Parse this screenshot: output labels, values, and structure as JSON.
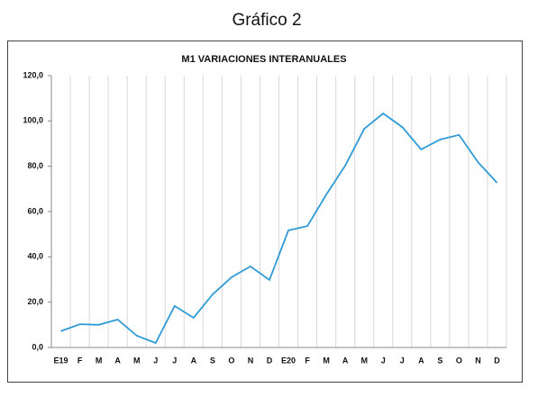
{
  "heading": "Gráfico 2",
  "chart_data": {
    "type": "line",
    "title": "M1 VARIACIONES INTERANUALES",
    "categories": [
      "E19",
      "F",
      "M",
      "A",
      "M",
      "J",
      "J",
      "A",
      "S",
      "O",
      "N",
      "D",
      "E20",
      "F",
      "M",
      "A",
      "M",
      "J",
      "J",
      "A",
      "S",
      "O",
      "N",
      "D"
    ],
    "values": [
      7.2,
      10.3,
      10.0,
      12.3,
      5.2,
      2.0,
      18.3,
      13.1,
      23.4,
      31.0,
      35.8,
      29.8,
      51.7,
      53.6,
      67.5,
      80.3,
      96.5,
      103.3,
      97.3,
      87.4,
      91.8,
      93.8,
      81.8,
      72.7
    ],
    "color": "#2e9bd6",
    "ylim": [
      0,
      120
    ],
    "yticks": [
      {
        "value": 0,
        "label": "0,0"
      },
      {
        "value": 20,
        "label": "20,0"
      },
      {
        "value": 40,
        "label": "40,0"
      },
      {
        "value": 60,
        "label": "60,0"
      },
      {
        "value": 80,
        "label": "80,0"
      },
      {
        "value": 100,
        "label": "100,0"
      },
      {
        "value": 120,
        "label": "120,0"
      }
    ],
    "vertical_grid": true
  }
}
